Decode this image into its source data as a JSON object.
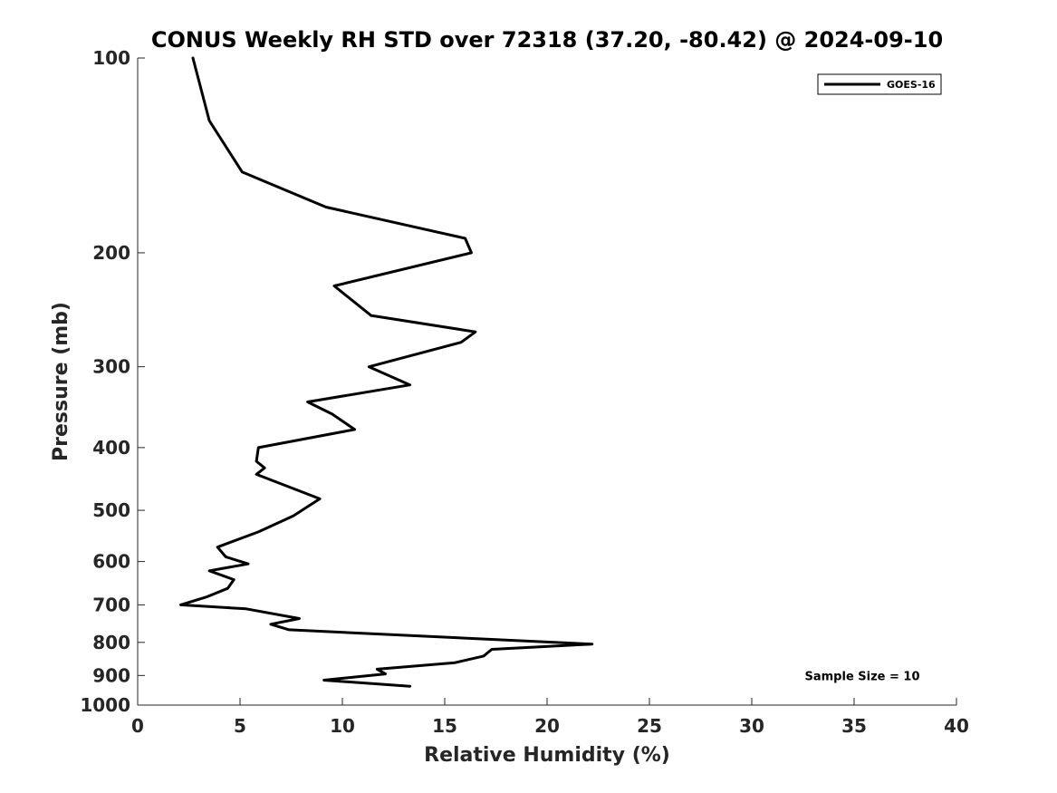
{
  "chart_data": {
    "type": "line",
    "title": "CONUS Weekly RH STD over 72318 (37.20, -80.42) @ 2024-09-10",
    "xlabel": "Relative Humidity (%)",
    "ylabel": "Pressure (mb)",
    "xlim": [
      0,
      40
    ],
    "ylim": [
      100,
      1000
    ],
    "yscale": "log",
    "yreversed": true,
    "xticks": [
      0,
      5,
      10,
      15,
      20,
      25,
      30,
      35,
      40
    ],
    "yticks": [
      100,
      200,
      300,
      400,
      500,
      600,
      700,
      800,
      900,
      1000
    ],
    "grid": false,
    "legend_position": "top-right",
    "series": [
      {
        "name": "GOES-16",
        "color": "#000000",
        "x": [
          2.7,
          3.5,
          5.1,
          9.2,
          16.0,
          16.3,
          9.6,
          11.4,
          16.5,
          15.8,
          11.3,
          13.3,
          8.3,
          9.5,
          10.6,
          5.9,
          5.8,
          6.2,
          5.8,
          8.9,
          7.6,
          5.9,
          3.9,
          4.3,
          5.4,
          3.5,
          4.7,
          4.4,
          3.4,
          2.1,
          5.3,
          7.9,
          6.5,
          7.4,
          22.2,
          17.3,
          16.9,
          15.5,
          11.7,
          12.1,
          9.1,
          13.3
        ],
        "y": [
          100,
          125,
          150,
          170,
          190,
          200,
          225,
          250,
          265,
          275,
          300,
          320,
          340,
          355,
          375,
          400,
          420,
          430,
          440,
          480,
          510,
          540,
          570,
          590,
          605,
          620,
          640,
          660,
          680,
          700,
          710,
          735,
          750,
          765,
          805,
          820,
          840,
          860,
          880,
          895,
          915,
          935
        ]
      }
    ],
    "annotations": [
      {
        "text": "Sample Size = 10",
        "x": 32.5,
        "y": 900
      }
    ]
  }
}
